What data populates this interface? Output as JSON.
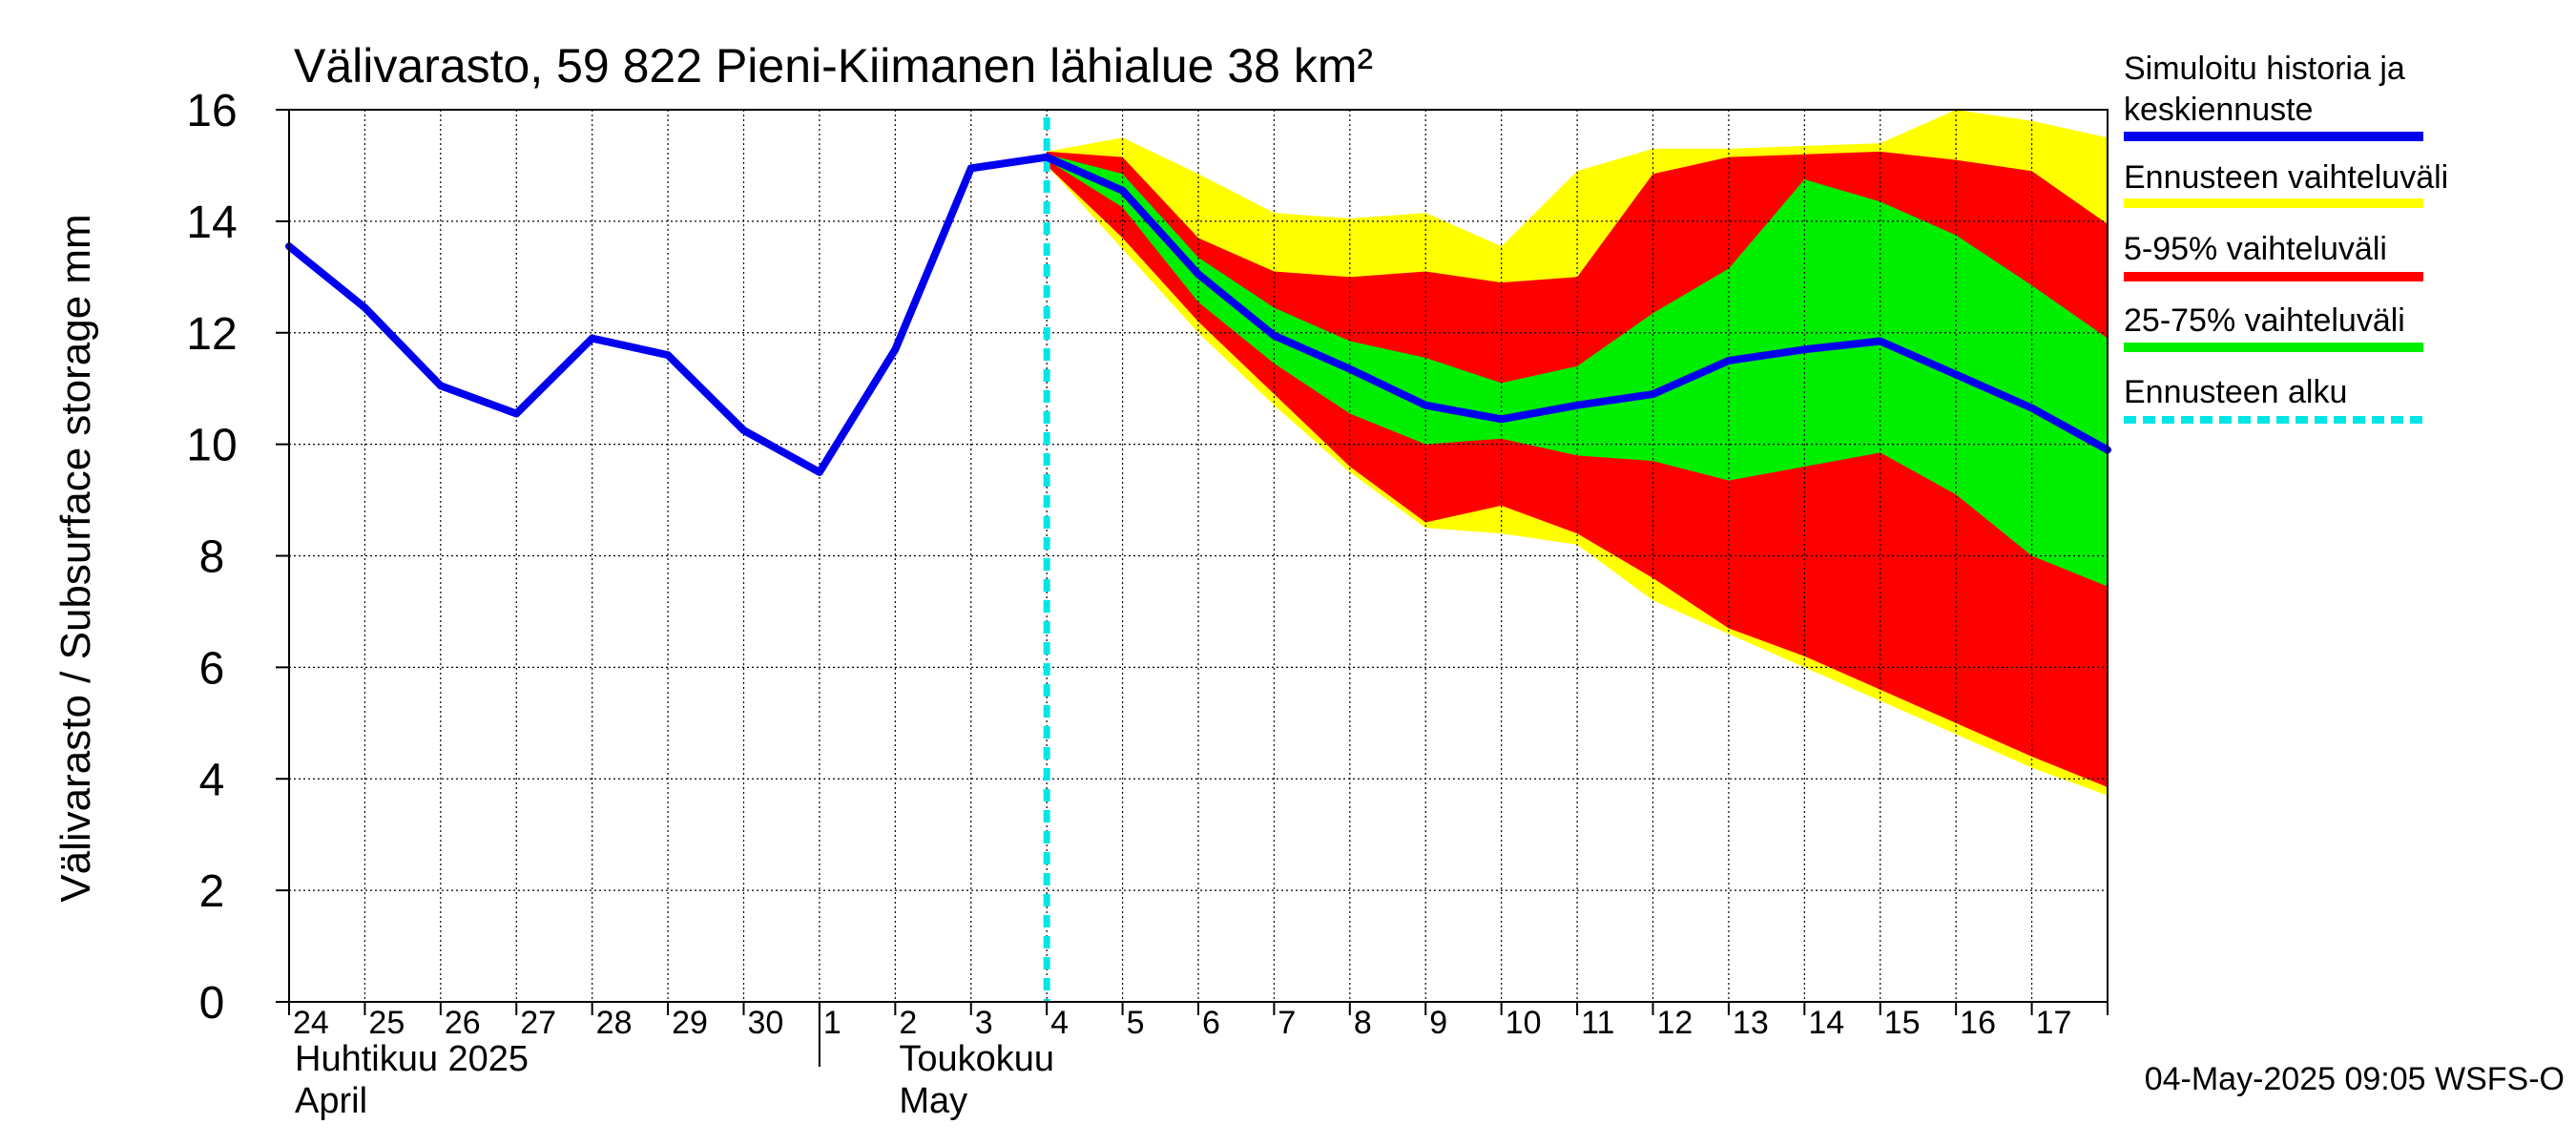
{
  "chart_data": {
    "type": "area",
    "title": "Välivarasto, 59 822 Pieni-Kiimanen lähialue 38 km²",
    "ylabel": "Välivarasto / Subsurface storage  mm",
    "ylim": [
      0,
      16
    ],
    "yticks": [
      "0",
      "2",
      "4",
      "6",
      "8",
      "10",
      "12",
      "14",
      "16"
    ],
    "grid": true,
    "legend_position": "right",
    "x_dates": [
      "2025-04-24",
      "2025-04-25",
      "2025-04-26",
      "2025-04-27",
      "2025-04-28",
      "2025-04-29",
      "2025-04-30",
      "2025-05-01",
      "2025-05-02",
      "2025-05-03",
      "2025-05-04",
      "2025-05-05",
      "2025-05-06",
      "2025-05-07",
      "2025-05-08",
      "2025-05-09",
      "2025-05-10",
      "2025-05-11",
      "2025-05-12",
      "2025-05-13",
      "2025-05-14",
      "2025-05-15",
      "2025-05-16",
      "2025-05-17",
      "2025-05-18"
    ],
    "day_labels": [
      "24",
      "25",
      "26",
      "27",
      "28",
      "29",
      "30",
      "1",
      "2",
      "3",
      "4",
      "5",
      "6",
      "7",
      "8",
      "9",
      "10",
      "11",
      "12",
      "13",
      "14",
      "15",
      "16",
      "17"
    ],
    "month_labels": [
      {
        "line1": "Huhtikuu  2025",
        "line2": "April"
      },
      {
        "line1": "Toukokuu",
        "line2": "May"
      }
    ],
    "forecast_start": "2025-05-04",
    "series": [
      {
        "name": "Simuloitu historia ja keskiennuste",
        "color": "#0000ee",
        "kind": "line",
        "values": [
          13.55,
          12.45,
          11.05,
          10.55,
          11.9,
          11.6,
          10.25,
          9.5,
          11.7,
          14.95,
          15.15,
          14.55,
          13.05,
          11.95,
          11.35,
          10.7,
          10.45,
          10.7,
          10.9,
          11.5,
          11.7,
          11.85,
          11.25,
          10.65,
          9.9
        ]
      },
      {
        "name": "Ennusteen vaihteluväli",
        "color": "#ffff00",
        "kind": "band",
        "start_index": 10,
        "upper": [
          15.25,
          15.5,
          14.85,
          14.15,
          14.05,
          14.15,
          13.55,
          14.9,
          15.3,
          15.3,
          15.35,
          15.4,
          16.0,
          15.8,
          15.5
        ],
        "lower": [
          15.0,
          13.5,
          12.0,
          10.7,
          9.5,
          8.5,
          8.4,
          8.2,
          7.2,
          6.6,
          6.0,
          5.4,
          4.8,
          4.2,
          3.7
        ]
      },
      {
        "name": "5-95% vaihteluväli",
        "color": "#ff0000",
        "kind": "band",
        "start_index": 10,
        "upper": [
          15.25,
          15.15,
          13.7,
          13.1,
          13.0,
          13.1,
          12.9,
          13.0,
          14.85,
          15.15,
          15.2,
          15.25,
          15.1,
          14.9,
          13.95
        ],
        "lower": [
          15.0,
          13.7,
          12.2,
          10.9,
          9.6,
          8.6,
          8.9,
          8.4,
          7.6,
          6.7,
          6.2,
          5.6,
          5.0,
          4.4,
          3.85
        ]
      },
      {
        "name": "25-75% vaihteluväli",
        "color": "#00ee00",
        "kind": "band",
        "start_index": 10,
        "upper": [
          15.2,
          14.85,
          13.35,
          12.45,
          11.85,
          11.55,
          11.1,
          11.4,
          12.35,
          13.15,
          14.75,
          14.35,
          13.75,
          12.85,
          11.9
        ],
        "lower": [
          15.1,
          14.25,
          12.55,
          11.45,
          10.55,
          10.0,
          10.1,
          9.8,
          9.7,
          9.35,
          9.6,
          9.85,
          9.1,
          8.0,
          7.45
        ]
      },
      {
        "name": "Ennusteen alku",
        "color": "#00e5e5",
        "kind": "vline"
      }
    ],
    "timestamp": "04-May-2025 09:05 WSFS-O"
  }
}
